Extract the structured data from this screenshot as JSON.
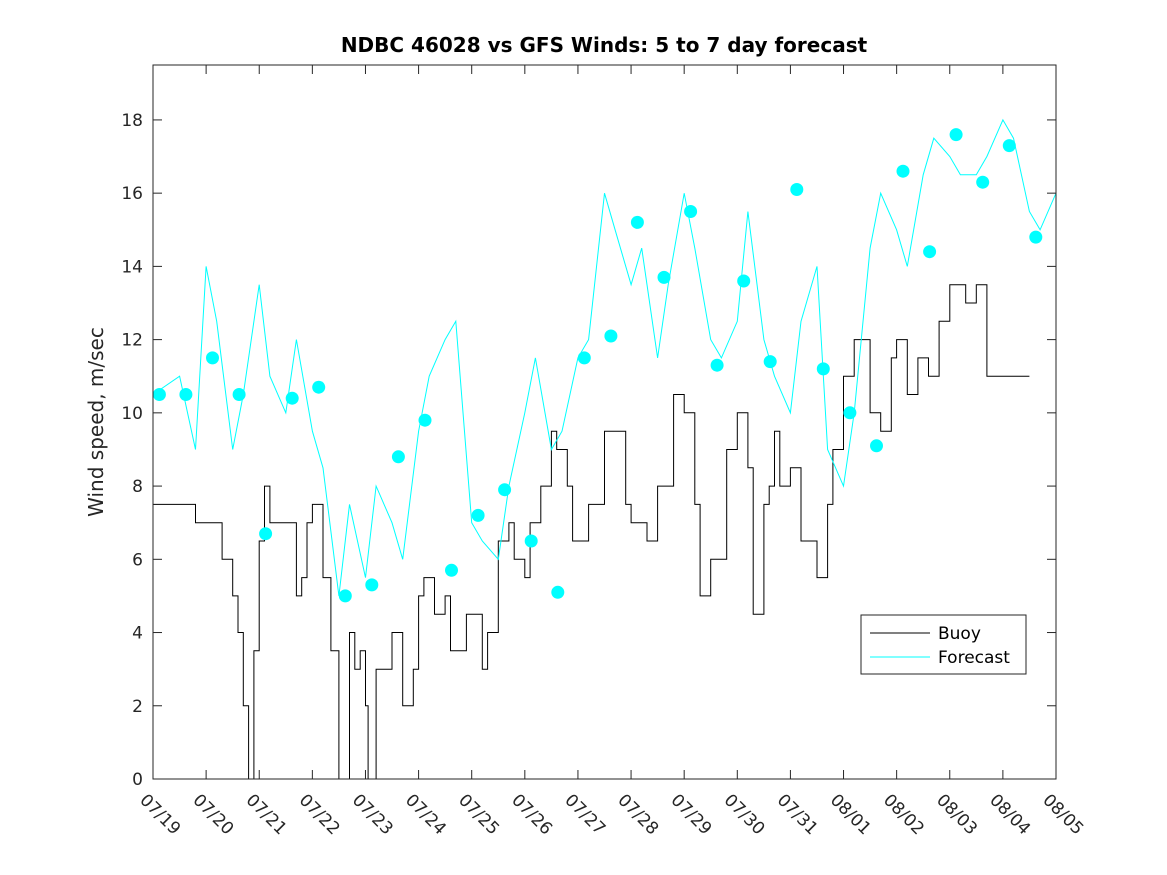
{
  "chart_data": {
    "type": "line",
    "title": "NDBC 46028 vs GFS Winds: 5 to 7 day forecast",
    "xlabel": "",
    "ylabel": "Wind speed, m/sec",
    "xlim": [
      0,
      17
    ],
    "ylim": [
      0,
      19.5
    ],
    "yticks": [
      0,
      2,
      4,
      6,
      8,
      10,
      12,
      14,
      16,
      18
    ],
    "xtick_labels": [
      "07/19",
      "07/20",
      "07/21",
      "07/22",
      "07/23",
      "07/24",
      "07/25",
      "07/26",
      "07/27",
      "07/28",
      "07/29",
      "07/30",
      "07/31",
      "08/01",
      "08/02",
      "08/03",
      "08/04",
      "08/05"
    ],
    "grid": false,
    "legend_position": "lower-right",
    "legend": [
      "Buoy",
      "Forecast"
    ],
    "colors": {
      "buoy": "#000000",
      "forecast": "#00ffff",
      "axis": "#262626"
    },
    "x_unit": "days since 07/19 00:00",
    "series": [
      {
        "name": "Buoy",
        "style": "stepped line",
        "x": [
          0.0,
          0.5,
          0.8,
          1.0,
          1.3,
          1.5,
          1.6,
          1.7,
          1.8,
          1.9,
          2.0,
          2.1,
          2.2,
          2.4,
          2.7,
          2.8,
          2.9,
          3.0,
          3.2,
          3.35,
          3.5,
          3.7,
          3.8,
          3.9,
          4.0,
          4.05,
          4.2,
          4.3,
          4.5,
          4.7,
          4.9,
          5.0,
          5.1,
          5.3,
          5.5,
          5.6,
          5.9,
          6.0,
          6.2,
          6.3,
          6.5,
          6.7,
          6.8,
          7.0,
          7.1,
          7.3,
          7.5,
          7.6,
          7.8,
          7.9,
          8.2,
          8.5,
          8.7,
          8.9,
          9.0,
          9.3,
          9.5,
          9.8,
          10.0,
          10.2,
          10.3,
          10.5,
          10.8,
          11.0,
          11.2,
          11.3,
          11.5,
          11.6,
          11.7,
          11.8,
          12.0,
          12.2,
          12.5,
          12.7,
          12.8,
          13.0,
          13.2,
          13.5,
          13.7,
          13.9,
          14.0,
          14.2,
          14.4,
          14.6,
          14.8,
          15.0,
          15.3,
          15.5,
          15.7,
          16.0,
          16.2,
          16.35,
          16.5
        ],
        "y": [
          7.5,
          7.5,
          7.0,
          7.0,
          6.0,
          5.0,
          4.0,
          2.0,
          0.0,
          3.5,
          6.5,
          8.0,
          7.0,
          7.0,
          5.0,
          5.5,
          7.0,
          7.5,
          5.5,
          3.5,
          0.0,
          4.0,
          3.0,
          3.5,
          2.0,
          0.0,
          3.0,
          3.0,
          4.0,
          2.0,
          3.0,
          5.0,
          5.5,
          4.5,
          5.0,
          3.5,
          4.5,
          4.5,
          3.0,
          4.0,
          6.5,
          7.0,
          6.0,
          5.5,
          7.0,
          8.0,
          9.5,
          9.0,
          8.0,
          6.5,
          7.5,
          9.5,
          9.5,
          7.5,
          7.0,
          6.5,
          8.0,
          10.5,
          10.0,
          7.5,
          5.0,
          6.0,
          9.0,
          10.0,
          8.5,
          4.5,
          7.5,
          8.0,
          9.5,
          8.0,
          8.5,
          6.5,
          5.5,
          7.5,
          9.0,
          11.0,
          12.0,
          10.0,
          9.5,
          11.5,
          12.0,
          10.5,
          11.5,
          11.0,
          12.5,
          13.5,
          13.0,
          13.5,
          11.0,
          11.0,
          11.0,
          11.0,
          11.0
        ]
      },
      {
        "name": "Forecast",
        "style": "line",
        "x": [
          0.0,
          0.5,
          0.8,
          1.0,
          1.2,
          1.5,
          1.7,
          2.0,
          2.2,
          2.5,
          2.7,
          3.0,
          3.2,
          3.5,
          3.7,
          4.0,
          4.2,
          4.5,
          4.7,
          5.0,
          5.2,
          5.5,
          5.7,
          6.0,
          6.2,
          6.5,
          6.7,
          7.0,
          7.2,
          7.5,
          7.7,
          8.0,
          8.2,
          8.5,
          8.7,
          9.0,
          9.2,
          9.5,
          9.7,
          10.0,
          10.2,
          10.5,
          10.7,
          11.0,
          11.2,
          11.5,
          11.7,
          12.0,
          12.2,
          12.5,
          12.7,
          13.0,
          13.2,
          13.5,
          13.7,
          14.0,
          14.2,
          14.5,
          14.7,
          15.0,
          15.2,
          15.5,
          15.7,
          16.0,
          16.2,
          16.5,
          16.7,
          17.0
        ],
        "y": [
          10.5,
          11.0,
          9.0,
          14.0,
          12.5,
          9.0,
          10.5,
          13.5,
          11.0,
          10.0,
          12.0,
          9.5,
          8.5,
          5.0,
          7.5,
          5.5,
          8.0,
          7.0,
          6.0,
          9.5,
          11.0,
          12.0,
          12.5,
          7.0,
          6.5,
          6.0,
          8.0,
          10.0,
          11.5,
          9.0,
          9.5,
          11.5,
          12.0,
          16.0,
          15.0,
          13.5,
          14.5,
          11.5,
          13.5,
          16.0,
          14.5,
          12.0,
          11.5,
          12.5,
          15.5,
          12.0,
          11.0,
          10.0,
          12.5,
          14.0,
          9.0,
          8.0,
          10.0,
          14.5,
          16.0,
          15.0,
          14.0,
          16.5,
          17.5,
          17.0,
          16.5,
          16.5,
          17.0,
          18.0,
          17.5,
          15.5,
          15.0,
          16.0
        ]
      },
      {
        "name": "",
        "style": "markers",
        "x": [
          0.12,
          0.62,
          1.12,
          1.62,
          2.12,
          2.62,
          3.12,
          3.62,
          4.12,
          4.62,
          5.12,
          5.62,
          6.12,
          6.62,
          7.12,
          7.62,
          8.12,
          8.62,
          9.12,
          9.62,
          10.12,
          10.62,
          11.12,
          11.62,
          12.12,
          12.62,
          13.12,
          13.62,
          14.12,
          14.62,
          15.12,
          15.62,
          16.12,
          16.62
        ],
        "y": [
          10.5,
          10.5,
          11.5,
          10.5,
          6.7,
          10.4,
          10.7,
          5.0,
          5.3,
          8.8,
          9.8,
          5.7,
          7.2,
          7.9,
          6.5,
          5.1,
          11.5,
          12.1,
          15.2,
          13.7,
          15.5,
          11.3,
          13.6,
          11.4,
          16.1,
          11.2,
          10.0,
          9.1,
          16.6,
          14.4,
          17.6,
          16.3,
          17.3,
          14.8
        ]
      }
    ]
  }
}
